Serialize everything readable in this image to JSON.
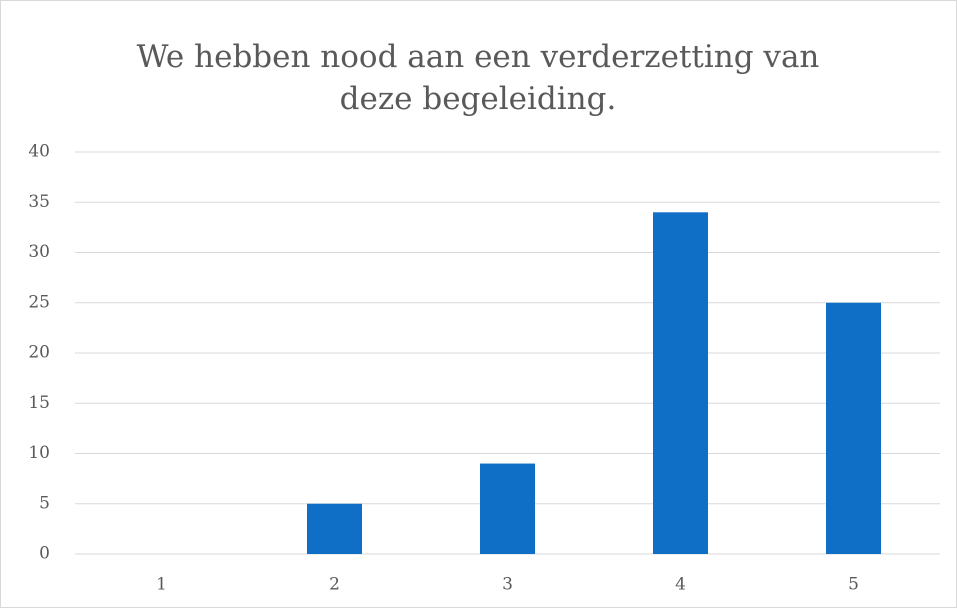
{
  "chart_data": {
    "type": "bar",
    "title": "We hebben nood aan een verderzetting van deze begeleiding.",
    "categories": [
      "1",
      "2",
      "3",
      "4",
      "5"
    ],
    "values": [
      0,
      5,
      9,
      34,
      25
    ],
    "color": "#0f6fc6",
    "ylim": [
      0,
      40
    ],
    "yticks": [
      0,
      5,
      10,
      15,
      20,
      25,
      30,
      35,
      40
    ],
    "grid": true
  }
}
